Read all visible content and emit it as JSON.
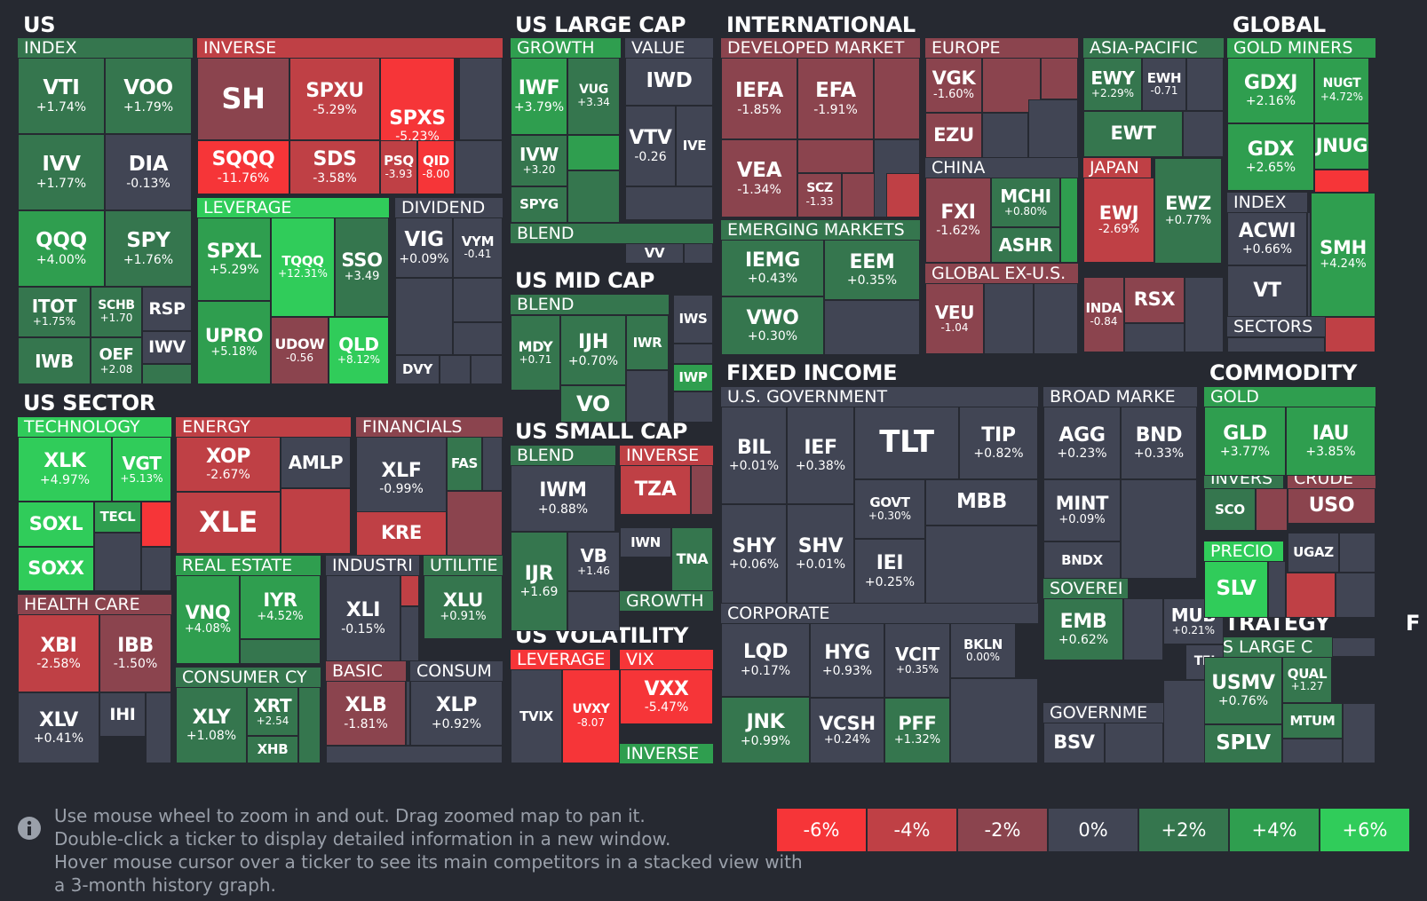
{
  "colors": {
    "background": "#262931",
    "legend": [
      "#f63538",
      "#bf4045",
      "#8b444e",
      "#414554",
      "#35764e",
      "#2f9e4f",
      "#30cc5a"
    ]
  },
  "sections": {
    "us": "US",
    "us_large_cap": "US LARGE CAP",
    "international": "INTERNATIONAL",
    "global": "GLOBAL",
    "us_mid_cap": "US MID CAP",
    "us_sector": "US SECTOR",
    "us_small_cap": "US SMALL CAP",
    "fixed_income": "FIXED INCOME",
    "commodity": "COMMODITY",
    "us_volatility": "US VOLATILITY",
    "strategy": "STRATEGY",
    "truncated": "F"
  },
  "groups": {
    "index": "INDEX",
    "inverse": "INVERSE",
    "leverage": "LEVERAGE",
    "dividend": "DIVIDEND",
    "growth": "GROWTH",
    "value": "VALUE",
    "blend": "BLEND",
    "developed_market": "DEVELOPED MARKET",
    "europe": "EUROPE",
    "asia_pacific": "ASIA-PACIFIC",
    "china": "CHINA",
    "japan": "JAPAN",
    "emerging_markets": "EMERGING MARKETS",
    "global_ex_us": "GLOBAL EX-U.S.",
    "gold_miners": "GOLD MINERS",
    "global_index": "INDEX",
    "sectors": "SECTORS",
    "mid_blend": "BLEND",
    "technology": "TECHNOLOGY",
    "energy": "ENERGY",
    "financials": "FINANCIALS",
    "health_care": "HEALTH CARE",
    "real_estate": "REAL ESTATE",
    "industri": "INDUSTRI",
    "utilitie": "UTILITIE",
    "basic": "BASIC",
    "consum": "CONSUM",
    "consumer_cy": "CONSUMER CY",
    "small_blend": "BLEND",
    "small_inverse": "INVERSE",
    "small_growth": "GROWTH",
    "us_government": "U.S. GOVERNMENT",
    "broad_marke": "BROAD MARKE",
    "corporate": "CORPORATE",
    "sovereign": "SOVEREI",
    "governme": "GOVERNME",
    "gold": "GOLD",
    "invers": "INVERS",
    "crude": "CRUDE",
    "precio": "PRECIO",
    "vol_leverage": "LEVERAGE",
    "vix": "VIX",
    "vol_inverse": "INVERSE",
    "us_large_c": "US LARGE C"
  },
  "tickers": {
    "vti": {
      "t": "VTI",
      "p": "+1.74%"
    },
    "voo": {
      "t": "VOO",
      "p": "+1.79%"
    },
    "ivv": {
      "t": "IVV",
      "p": "+1.77%"
    },
    "dia": {
      "t": "DIA",
      "p": "-0.13%"
    },
    "qqq": {
      "t": "QQQ",
      "p": "+4.00%"
    },
    "spy": {
      "t": "SPY",
      "p": "+1.76%"
    },
    "itot": {
      "t": "ITOT",
      "p": "+1.75%"
    },
    "schb": {
      "t": "SCHB",
      "p": "+1.70"
    },
    "rsp": {
      "t": "RSP",
      "p": ""
    },
    "iwv": {
      "t": "IWV",
      "p": ""
    },
    "iwb": {
      "t": "IWB",
      "p": ""
    },
    "oef": {
      "t": "OEF",
      "p": "+2.08"
    },
    "sh": {
      "t": "SH",
      "p": ""
    },
    "spxu": {
      "t": "SPXU",
      "p": "-5.29%"
    },
    "spxs": {
      "t": "SPXS",
      "p": "-5.23%"
    },
    "sqqq": {
      "t": "SQQQ",
      "p": "-11.76%"
    },
    "sds": {
      "t": "SDS",
      "p": "-3.58%"
    },
    "psq": {
      "t": "PSQ",
      "p": "-3.93"
    },
    "qid": {
      "t": "QID",
      "p": "-8.00"
    },
    "spxl": {
      "t": "SPXL",
      "p": "+5.29%"
    },
    "tqqq": {
      "t": "TQQQ",
      "p": "+12.31%"
    },
    "sso": {
      "t": "SSO",
      "p": "+3.49"
    },
    "upro": {
      "t": "UPRO",
      "p": "+5.18%"
    },
    "udow": {
      "t": "UDOW",
      "p": "-0.56"
    },
    "qld": {
      "t": "QLD",
      "p": "+8.12%"
    },
    "vig": {
      "t": "VIG",
      "p": "+0.09%"
    },
    "vym": {
      "t": "VYM",
      "p": "-0.41"
    },
    "dvy": {
      "t": "DVY",
      "p": ""
    },
    "iwf": {
      "t": "IWF",
      "p": "+3.79%"
    },
    "vug": {
      "t": "VUG",
      "p": "+3.34"
    },
    "ivw": {
      "t": "IVW",
      "p": "+3.20"
    },
    "spyg": {
      "t": "SPYG",
      "p": ""
    },
    "iwd": {
      "t": "IWD",
      "p": ""
    },
    "vtv": {
      "t": "VTV",
      "p": "-0.26"
    },
    "ive": {
      "t": "IVE",
      "p": ""
    },
    "vv": {
      "t": "VV",
      "p": ""
    },
    "mdy": {
      "t": "MDY",
      "p": "+0.71"
    },
    "ijh": {
      "t": "IJH",
      "p": "+0.70%"
    },
    "iwr": {
      "t": "IWR",
      "p": ""
    },
    "iws": {
      "t": "IWS",
      "p": ""
    },
    "iwp": {
      "t": "IWP",
      "p": ""
    },
    "vo": {
      "t": "VO",
      "p": ""
    },
    "iefa": {
      "t": "IEFA",
      "p": "-1.85%"
    },
    "efa": {
      "t": "EFA",
      "p": "-1.91%"
    },
    "vea": {
      "t": "VEA",
      "p": "-1.34%"
    },
    "scz": {
      "t": "SCZ",
      "p": "-1.33"
    },
    "iemg": {
      "t": "IEMG",
      "p": "+0.43%"
    },
    "eem": {
      "t": "EEM",
      "p": "+0.35%"
    },
    "vwo": {
      "t": "VWO",
      "p": "+0.30%"
    },
    "vgk": {
      "t": "VGK",
      "p": "-1.60%"
    },
    "ezu": {
      "t": "EZU",
      "p": ""
    },
    "ewy": {
      "t": "EWY",
      "p": "+2.29%"
    },
    "ewh": {
      "t": "EWH",
      "p": "-0.71"
    },
    "ewt": {
      "t": "EWT",
      "p": ""
    },
    "fxi": {
      "t": "FXI",
      "p": "-1.62%"
    },
    "mchi": {
      "t": "MCHI",
      "p": "+0.80%"
    },
    "ashr": {
      "t": "ASHR",
      "p": ""
    },
    "ewj": {
      "t": "EWJ",
      "p": "-2.69%"
    },
    "ewz": {
      "t": "EWZ",
      "p": "+0.77%"
    },
    "veu": {
      "t": "VEU",
      "p": "-1.04"
    },
    "inda": {
      "t": "INDA",
      "p": "-0.84"
    },
    "rsx": {
      "t": "RSX",
      "p": ""
    },
    "gdxj": {
      "t": "GDXJ",
      "p": "+2.16%"
    },
    "nugt": {
      "t": "NUGT",
      "p": "+4.72%"
    },
    "gdx": {
      "t": "GDX",
      "p": "+2.65%"
    },
    "jnug": {
      "t": "JNUG",
      "p": ""
    },
    "acwi": {
      "t": "ACWI",
      "p": "+0.66%"
    },
    "vt": {
      "t": "VT",
      "p": ""
    },
    "smh": {
      "t": "SMH",
      "p": "+4.24%"
    },
    "xlk": {
      "t": "XLK",
      "p": "+4.97%"
    },
    "vgt": {
      "t": "VGT",
      "p": "+5.13%"
    },
    "soxl": {
      "t": "SOXL",
      "p": ""
    },
    "tecl": {
      "t": "TECL",
      "p": ""
    },
    "soxx": {
      "t": "SOXX",
      "p": ""
    },
    "xop": {
      "t": "XOP",
      "p": "-2.67%"
    },
    "amlp": {
      "t": "AMLP",
      "p": ""
    },
    "xle": {
      "t": "XLE",
      "p": ""
    },
    "xlf": {
      "t": "XLF",
      "p": "-0.99%"
    },
    "fas": {
      "t": "FAS",
      "p": ""
    },
    "kre": {
      "t": "KRE",
      "p": ""
    },
    "xbi": {
      "t": "XBI",
      "p": "-2.58%"
    },
    "ibb": {
      "t": "IBB",
      "p": "-1.50%"
    },
    "xlv": {
      "t": "XLV",
      "p": "+0.41%"
    },
    "ihi": {
      "t": "IHI",
      "p": ""
    },
    "vnq": {
      "t": "VNQ",
      "p": "+4.08%"
    },
    "iyr": {
      "t": "IYR",
      "p": "+4.52%"
    },
    "xli": {
      "t": "XLI",
      "p": "-0.15%"
    },
    "xlu": {
      "t": "XLU",
      "p": "+0.91%"
    },
    "xly": {
      "t": "XLY",
      "p": "+1.08%"
    },
    "xrt": {
      "t": "XRT",
      "p": "+2.54"
    },
    "xhb": {
      "t": "XHB",
      "p": ""
    },
    "xlb": {
      "t": "XLB",
      "p": "-1.81%"
    },
    "xlp": {
      "t": "XLP",
      "p": "+0.92%"
    },
    "iwm": {
      "t": "IWM",
      "p": "+0.88%"
    },
    "tza": {
      "t": "TZA",
      "p": ""
    },
    "ijr": {
      "t": "IJR",
      "p": "+1.69"
    },
    "vb": {
      "t": "VB",
      "p": "+1.46"
    },
    "iwn": {
      "t": "IWN",
      "p": ""
    },
    "tna": {
      "t": "TNA",
      "p": ""
    },
    "tvix": {
      "t": "TVIX",
      "p": ""
    },
    "uvxy": {
      "t": "UVXY",
      "p": "-8.07"
    },
    "vxx": {
      "t": "VXX",
      "p": "-5.47%"
    },
    "bil": {
      "t": "BIL",
      "p": "+0.01%"
    },
    "ief": {
      "t": "IEF",
      "p": "+0.38%"
    },
    "tlt": {
      "t": "TLT",
      "p": ""
    },
    "tip": {
      "t": "TIP",
      "p": "+0.82%"
    },
    "govt": {
      "t": "GOVT",
      "p": "+0.30%"
    },
    "mbb": {
      "t": "MBB",
      "p": ""
    },
    "shy": {
      "t": "SHY",
      "p": "+0.06%"
    },
    "shv": {
      "t": "SHV",
      "p": "+0.01%"
    },
    "iei": {
      "t": "IEI",
      "p": "+0.25%"
    },
    "agg": {
      "t": "AGG",
      "p": "+0.23%"
    },
    "bnd": {
      "t": "BND",
      "p": "+0.33%"
    },
    "mint": {
      "t": "MINT",
      "p": "+0.09%"
    },
    "bndx": {
      "t": "BNDX",
      "p": ""
    },
    "emb": {
      "t": "EMB",
      "p": "+0.62%"
    },
    "mub": {
      "t": "MUB",
      "p": "+0.21%"
    },
    "tfi": {
      "t": "TFI",
      "p": ""
    },
    "bsv": {
      "t": "BSV",
      "p": ""
    },
    "lqd": {
      "t": "LQD",
      "p": "+0.17%"
    },
    "hyg": {
      "t": "HYG",
      "p": "+0.93%"
    },
    "vcit": {
      "t": "VCIT",
      "p": "+0.35%"
    },
    "bkln": {
      "t": "BKLN",
      "p": "0.00%"
    },
    "jnk": {
      "t": "JNK",
      "p": "+0.99%"
    },
    "vcsh": {
      "t": "VCSH",
      "p": "+0.24%"
    },
    "pff": {
      "t": "PFF",
      "p": "+1.32%"
    },
    "gld": {
      "t": "GLD",
      "p": "+3.77%"
    },
    "iau": {
      "t": "IAU",
      "p": "+3.85%"
    },
    "sco": {
      "t": "SCO",
      "p": ""
    },
    "uso": {
      "t": "USO",
      "p": ""
    },
    "slv": {
      "t": "SLV",
      "p": ""
    },
    "ugaz": {
      "t": "UGAZ",
      "p": ""
    },
    "usmv": {
      "t": "USMV",
      "p": "+0.76%"
    },
    "qual": {
      "t": "QUAL",
      "p": "+1.27"
    },
    "mtum": {
      "t": "MTUM",
      "p": ""
    },
    "splv": {
      "t": "SPLV",
      "p": ""
    }
  },
  "help": {
    "line1": "Use mouse wheel to zoom in and out. Drag zoomed map to pan it.",
    "line2": "Double-click a ticker to display detailed information in a new window.",
    "line3": "Hover mouse cursor over a ticker to see its main competitors in a stacked view with",
    "line4": "a 3-month history graph.",
    "icon": "info-icon"
  },
  "legend": [
    "-6%",
    "-4%",
    "-2%",
    "0%",
    "+2%",
    "+4%",
    "+6%"
  ]
}
